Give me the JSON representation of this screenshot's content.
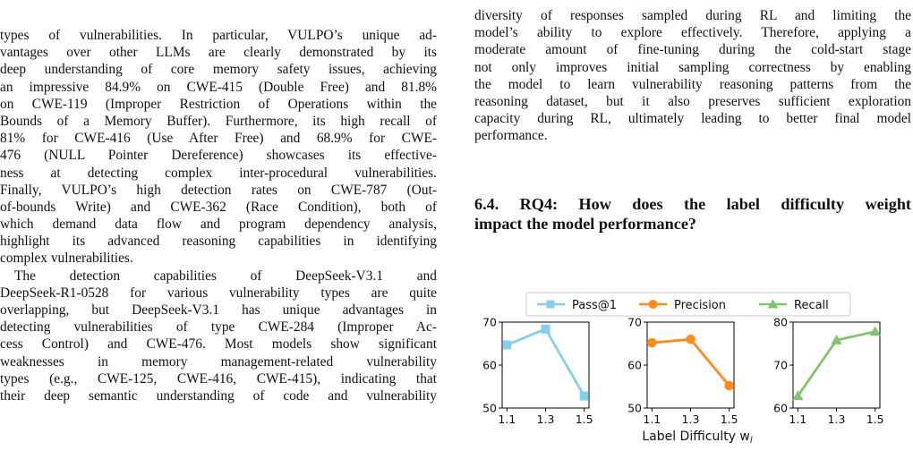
{
  "left_column": {
    "lines": [
      "",
      "types of vulnerabilities. In particular, VULPO’s unique ad-",
      "vantages over other LLMs are clearly demonstrated by its",
      "deep understanding of core memory safety issues, achieving",
      "an impressive 84.9% on CWE-415 (Double Free) and 81.8%",
      "on CWE-119 (Improper Restriction of Operations within the",
      "Bounds of a Memory Buffer). Furthermore, its high recall of",
      "81% for CWE-416 (Use After Free) and 68.9% for CWE-",
      "476 (NULL Pointer Dereference) showcases its effective-",
      "ness at detecting complex inter-procedural vulnerabilities.",
      "Finally, VULPO’s high detection rates on CWE-787 (Out-",
      "of-bounds Write) and CWE-362 (Race Condition), both of",
      "which demand data flow and program dependency analysis,",
      "highlight its advanced reasoning capabilities in identifying",
      "complex vulnerabilities.",
      "The detection capabilities of DeepSeek-V3.1 and",
      "DeepSeek-R1-0528 for various vulnerability types are quite",
      "overlapping, but DeepSeek-V3.1 has unique advantages in",
      "detecting vulnerabilities of type CWE-284 (Improper Ac-",
      "cess Control) and CWE-476. Most models show significant",
      "weaknesses in memory management-related vulnerability",
      "types (e.g., CWE-125, CWE-416, CWE-415), indicating that",
      "their deep semantic understanding of code and vulnerability"
    ]
  },
  "right_column": {
    "lines": [
      "",
      "diversity of responses sampled during RL and limiting the",
      "model’s ability to explore effectively. Therefore, applying a",
      "moderate amount of fine-tuning during the cold-start stage",
      "not only improves initial sampling correctness by enabling",
      "the model to learn vulnerability reasoning patterns from the",
      "reasoning dataset, but it also preserves sufficient exploration",
      "capacity during RL, ultimately leading to better final model",
      "performance."
    ],
    "heading_line1": "6.4. RQ4: How does the label difficulty weight",
    "heading_line2": "impact the model performance?"
  },
  "figure": {
    "legend": [
      "Pass@1",
      "Precision",
      "Recall"
    ],
    "xlabel": "Label Difficulty w",
    "xlabel_sub": "l"
  },
  "chart_data": [
    {
      "type": "line",
      "x": [
        1.1,
        1.3,
        1.5
      ],
      "x_ticks": [
        "1.1",
        "1.3",
        "1.5"
      ],
      "series": [
        {
          "name": "Pass@1",
          "values": [
            64.7,
            68.4,
            52.8
          ]
        }
      ],
      "ylim": [
        50,
        70
      ],
      "y_ticks": [
        50,
        60,
        70
      ],
      "color": "#87ceeb",
      "marker": "square"
    },
    {
      "type": "line",
      "x": [
        1.1,
        1.3,
        1.5
      ],
      "x_ticks": [
        "1.1",
        "1.3",
        "1.5"
      ],
      "series": [
        {
          "name": "Precision",
          "values": [
            65.2,
            66.0,
            55.2
          ]
        }
      ],
      "ylim": [
        50,
        70
      ],
      "y_ticks": [
        50,
        60,
        70
      ],
      "color": "#ff8c1a",
      "marker": "circle"
    },
    {
      "type": "line",
      "x": [
        1.1,
        1.3,
        1.5
      ],
      "x_ticks": [
        "1.1",
        "1.3",
        "1.5"
      ],
      "series": [
        {
          "name": "Recall",
          "values": [
            62.8,
            75.8,
            77.8
          ]
        }
      ],
      "ylim": [
        60,
        80
      ],
      "y_ticks": [
        60,
        70,
        80
      ],
      "color": "#82c46c",
      "marker": "triangle"
    }
  ]
}
